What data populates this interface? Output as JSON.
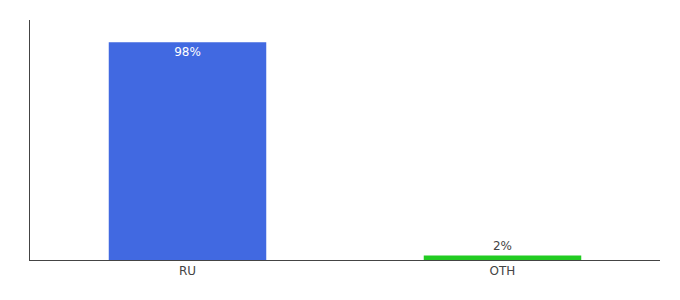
{
  "chart_data": {
    "type": "bar",
    "categories": [
      "RU",
      "OTH"
    ],
    "values": [
      98,
      2
    ],
    "value_labels": [
      "98%",
      "2%"
    ],
    "colors": [
      "#4169e1",
      "#22cc22"
    ],
    "ylim": [
      0,
      108
    ],
    "grid": false,
    "data_labels": true,
    "tick_labels": "x"
  }
}
